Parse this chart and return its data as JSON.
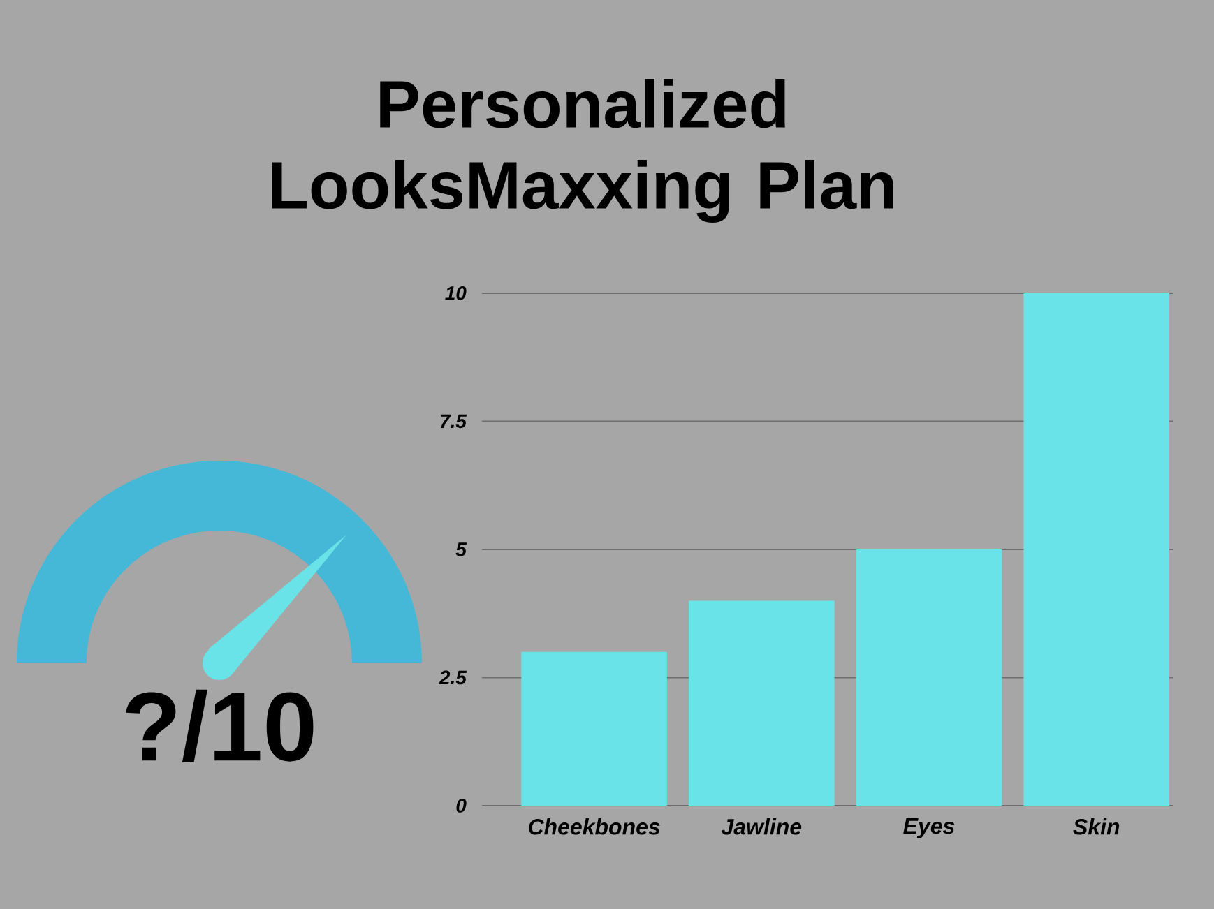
{
  "chart_data": {
    "type": "bar",
    "title": "Personalized LooksMaxxing Plan",
    "categories": [
      "Cheekbones",
      "Jawline",
      "Eyes",
      "Skin"
    ],
    "values": [
      3,
      4,
      5,
      10
    ],
    "color": "#6ae3e8",
    "ylim": [
      0,
      10
    ],
    "yticks": [
      0,
      2.5,
      5,
      7.5,
      10
    ],
    "grid": "y",
    "annotations": [
      "?/10"
    ]
  }
}
